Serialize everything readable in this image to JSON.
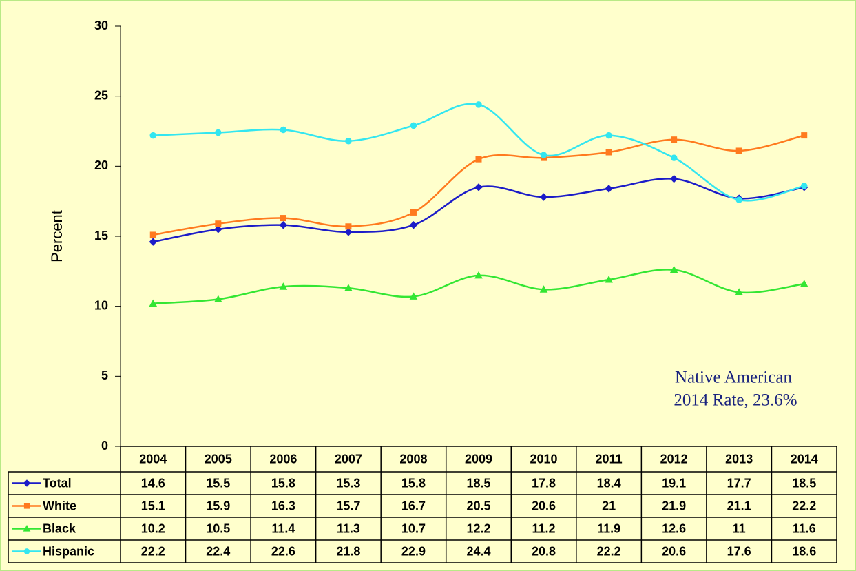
{
  "chart_data": {
    "type": "line",
    "y_label": "Percent",
    "categories": [
      "2004",
      "2005",
      "2006",
      "2007",
      "2008",
      "2009",
      "2010",
      "2011",
      "2012",
      "2013",
      "2014"
    ],
    "series": [
      {
        "name": "Total",
        "color": "#1c1cc8",
        "marker": "diamond",
        "values": [
          14.6,
          15.5,
          15.8,
          15.3,
          15.8,
          18.5,
          17.8,
          18.4,
          19.1,
          17.7,
          18.5
        ]
      },
      {
        "name": "White",
        "color": "#ff7a1e",
        "marker": "square",
        "values": [
          15.1,
          15.9,
          16.3,
          15.7,
          16.7,
          20.5,
          20.6,
          21,
          21.9,
          21.1,
          22.2
        ]
      },
      {
        "name": "Black",
        "color": "#33e633",
        "marker": "triangle",
        "values": [
          10.2,
          10.5,
          11.4,
          11.3,
          10.7,
          12.2,
          11.2,
          11.9,
          12.6,
          11,
          11.6
        ]
      },
      {
        "name": "Hispanic",
        "color": "#33e6f0",
        "marker": "circle",
        "values": [
          22.2,
          22.4,
          22.6,
          21.8,
          22.9,
          24.4,
          20.8,
          22.2,
          20.6,
          17.6,
          18.6
        ]
      }
    ],
    "ylim": [
      0,
      30
    ],
    "yticks": [
      0,
      5,
      10,
      15,
      20,
      25,
      30
    ],
    "annotation": [
      "Native American",
      "2014 Rate,  23.6%"
    ]
  }
}
